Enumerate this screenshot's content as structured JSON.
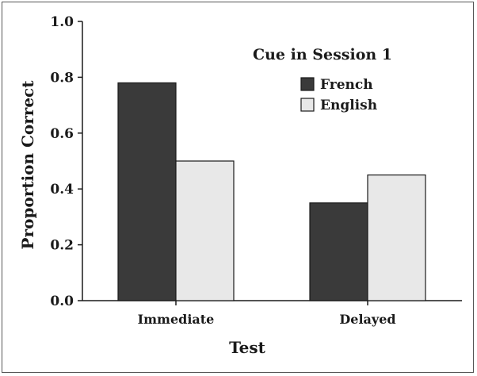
{
  "chart_data": {
    "type": "bar",
    "categories": [
      "Immediate",
      "Delayed"
    ],
    "series": [
      {
        "name": "French",
        "values": [
          0.78,
          0.35
        ],
        "color": "#3a3a3a"
      },
      {
        "name": "English",
        "values": [
          0.5,
          0.45
        ],
        "color": "#e8e8e8"
      }
    ],
    "xlabel": "Test",
    "ylabel": "Proportion Correct",
    "ylim": [
      0.0,
      1.0
    ],
    "yticks": [
      "0.0",
      "0.2",
      "0.4",
      "0.6",
      "0.8",
      "1.0"
    ],
    "legend_title": "Cue in Session 1",
    "legend_position": "top-right",
    "grid": false
  }
}
